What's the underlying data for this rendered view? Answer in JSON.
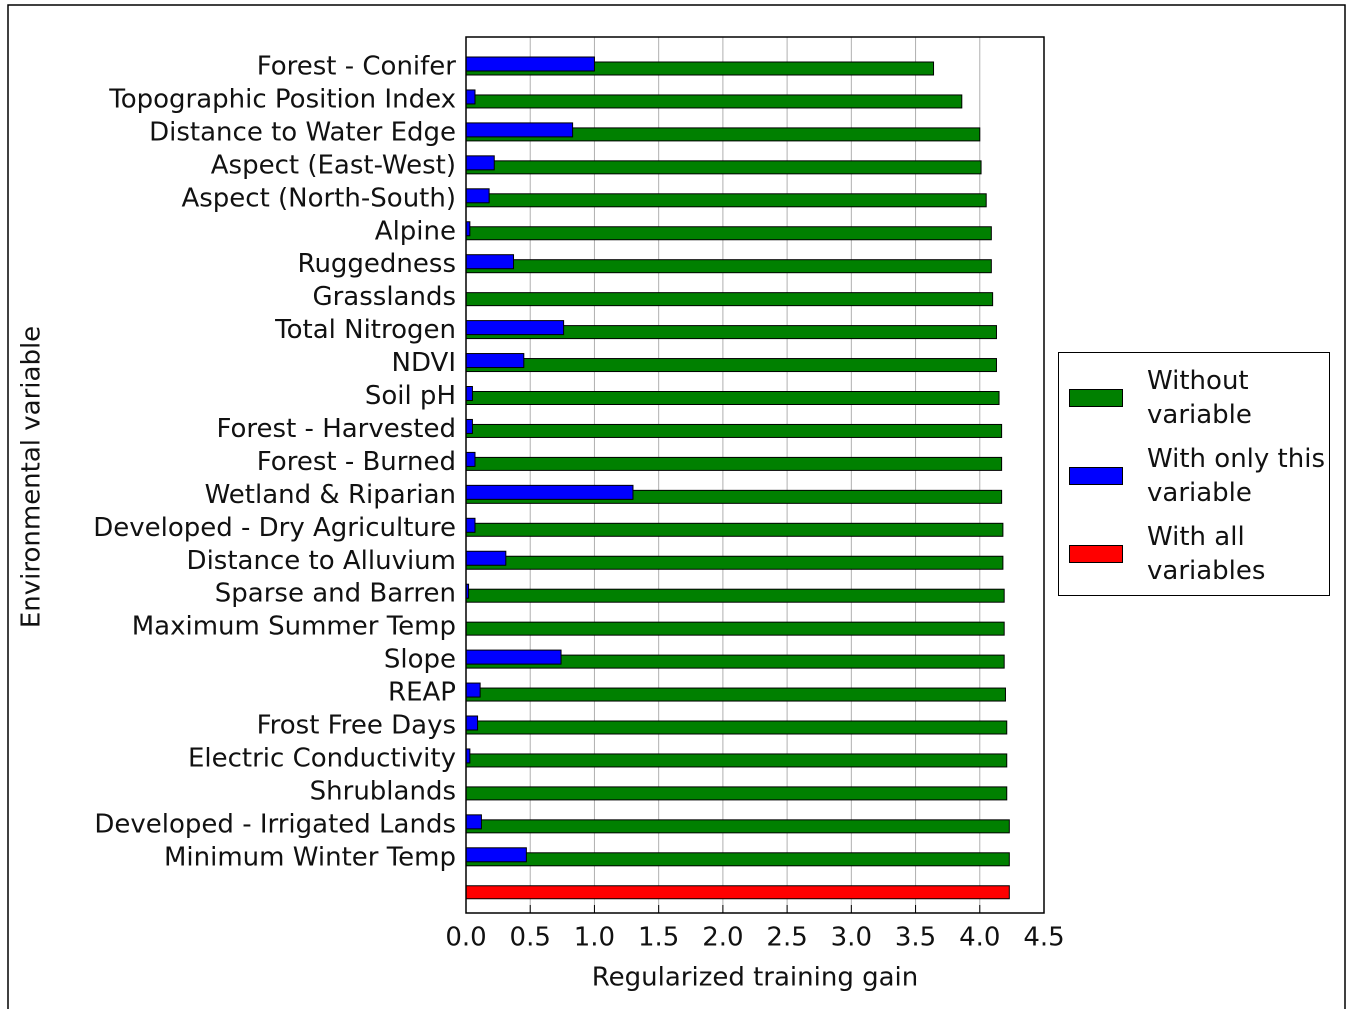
{
  "chart_data": {
    "type": "bar",
    "orientation": "horizontal",
    "x_label": "Regularized training gain",
    "y_label": "Environmental variable",
    "categories": [
      "Forest - Conifer",
      "Topographic Position Index",
      "Distance to Water Edge",
      "Aspect (East-West)",
      "Aspect (North-South)",
      "Alpine",
      "Ruggedness",
      "Grasslands",
      "Total Nitrogen",
      "NDVI",
      "Soil pH",
      "Forest - Harvested",
      "Forest - Burned",
      "Wetland & Riparian",
      "Developed - Dry Agriculture",
      "Distance to Alluvium",
      "Sparse and Barren",
      "Maximum Summer Temp",
      "Slope",
      "REAP",
      "Frost Free Days",
      "Electric Conductivity",
      "Shrublands",
      "Developed - Irrigated Lands",
      "Minimum Winter Temp",
      null
    ],
    "series": [
      {
        "name": "Without variable",
        "color": "#008000",
        "values": [
          3.64,
          3.86,
          4.0,
          4.01,
          4.05,
          4.09,
          4.09,
          4.1,
          4.13,
          4.13,
          4.15,
          4.17,
          4.17,
          4.17,
          4.18,
          4.18,
          4.19,
          4.19,
          4.19,
          4.2,
          4.21,
          4.21,
          4.21,
          4.23,
          4.23,
          null
        ]
      },
      {
        "name": "With only this variable",
        "color": "#0000ff",
        "values": [
          1.0,
          0.07,
          0.83,
          0.22,
          0.18,
          0.03,
          0.37,
          0,
          0.76,
          0.45,
          0.05,
          0.05,
          0.07,
          1.3,
          0.07,
          0.31,
          0.02,
          0,
          0.74,
          0.11,
          0.09,
          0.03,
          0,
          0.12,
          0.47,
          null
        ]
      },
      {
        "name": "With all variables",
        "color": "#ff0000",
        "values": [
          null,
          null,
          null,
          null,
          null,
          null,
          null,
          null,
          null,
          null,
          null,
          null,
          null,
          null,
          null,
          null,
          null,
          null,
          null,
          null,
          null,
          null,
          null,
          null,
          null,
          4.23
        ]
      }
    ],
    "xlim": [
      0,
      4.5
    ],
    "xticks": [
      {
        "value": 0,
        "label": "0.0"
      },
      {
        "value": 0.5,
        "label": "0.5"
      },
      {
        "value": 1,
        "label": "1.0"
      },
      {
        "value": 1.5,
        "label": "1.5"
      },
      {
        "value": 2,
        "label": "2.0"
      },
      {
        "value": 2.5,
        "label": "2.5"
      },
      {
        "value": 3,
        "label": "3.0"
      },
      {
        "value": 3.5,
        "label": "3.5"
      },
      {
        "value": 4,
        "label": "4.0"
      },
      {
        "value": 4.5,
        "label": "4.5"
      }
    ],
    "grid": true,
    "legend": "right"
  }
}
